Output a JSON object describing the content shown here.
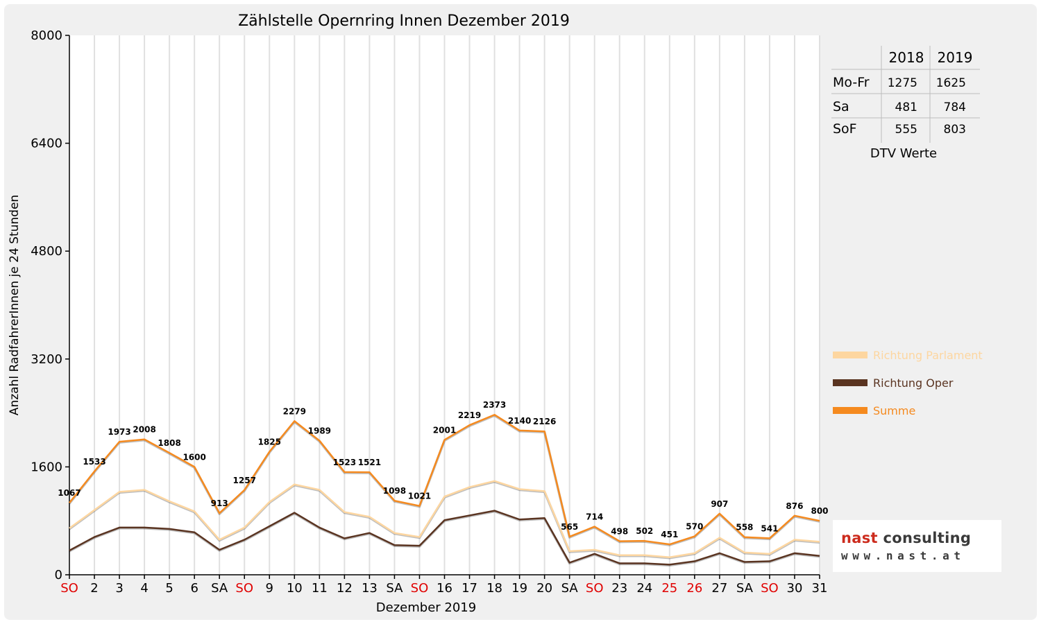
{
  "colors": {
    "parlament": "#fdd6a0",
    "oper": "#5a3421",
    "summe": "#f58a1f",
    "sunday_red": "#e00000",
    "grid": "#e0e0e0"
  },
  "dtv_table": {
    "headers": [
      "",
      "2018",
      "2019"
    ],
    "rows": [
      {
        "label": "Mo-Fr",
        "v2018": "1275",
        "v2019": "1625"
      },
      {
        "label": "Sa",
        "v2018": "481",
        "v2019": "784"
      },
      {
        "label": "SoF",
        "v2018": "555",
        "v2019": "803"
      }
    ],
    "caption": "DTV Werte"
  },
  "logo": {
    "name_part1": "nast",
    "name_part2": " consulting",
    "url": "www.nast.at"
  },
  "chart_data": {
    "type": "line",
    "title": "Zählstelle Opernring Innen Dezember 2019",
    "xlabel": "Dezember 2019",
    "ylabel": "Anzahl RadfahrerInnen je 24 Stunden",
    "ylim": [
      0,
      8000
    ],
    "yticks": [
      "0",
      "1600",
      "3200",
      "4800",
      "6400",
      "8000"
    ],
    "grid": true,
    "legend_position": "right",
    "categories": [
      "SO",
      "2",
      "3",
      "4",
      "5",
      "6",
      "SA",
      "SO",
      "9",
      "10",
      "11",
      "12",
      "13",
      "SA",
      "SO",
      "16",
      "17",
      "18",
      "19",
      "20",
      "SA",
      "SO",
      "23",
      "24",
      "25",
      "26",
      "27",
      "SA",
      "SO",
      "30",
      "31"
    ],
    "red_categories": [
      0,
      7,
      14,
      21,
      24,
      25,
      28
    ],
    "series": [
      {
        "name": "Richtung Parlament",
        "color_key": "parlament",
        "values": [
          690,
          960,
          1230,
          1260,
          1090,
          940,
          520,
          700,
          1080,
          1340,
          1260,
          930,
          860,
          620,
          560,
          1160,
          1300,
          1390,
          1270,
          1240,
          350,
          370,
          290,
          290,
          260,
          320,
          550,
          330,
          310,
          520,
          490
        ]
      },
      {
        "name": "Richtung Oper",
        "color_key": "oper",
        "values": [
          360,
          560,
          700,
          700,
          680,
          630,
          370,
          520,
          720,
          920,
          700,
          540,
          620,
          440,
          430,
          810,
          880,
          950,
          820,
          840,
          180,
          310,
          170,
          170,
          150,
          200,
          320,
          190,
          200,
          320,
          280
        ]
      },
      {
        "name": "Summe",
        "color_key": "summe",
        "values": [
          1067,
          1533,
          1973,
          2008,
          1808,
          1600,
          913,
          1257,
          1825,
          2279,
          1989,
          1523,
          1521,
          1098,
          1021,
          2001,
          2219,
          2373,
          2140,
          2126,
          565,
          714,
          498,
          502,
          451,
          570,
          907,
          558,
          541,
          876,
          800
        ]
      }
    ],
    "data_labels": [
      "1067",
      "1533",
      "1973",
      "2008",
      "1808",
      "1600",
      "913",
      "1257",
      "1825",
      "2279",
      "1989",
      "1523",
      "1521",
      "1098",
      "1021",
      "2001",
      "2219",
      "2373",
      "2140",
      "2126",
      "565",
      "714",
      "498",
      "502",
      "451",
      "570",
      "907",
      "558",
      "541",
      "876",
      "800"
    ]
  }
}
